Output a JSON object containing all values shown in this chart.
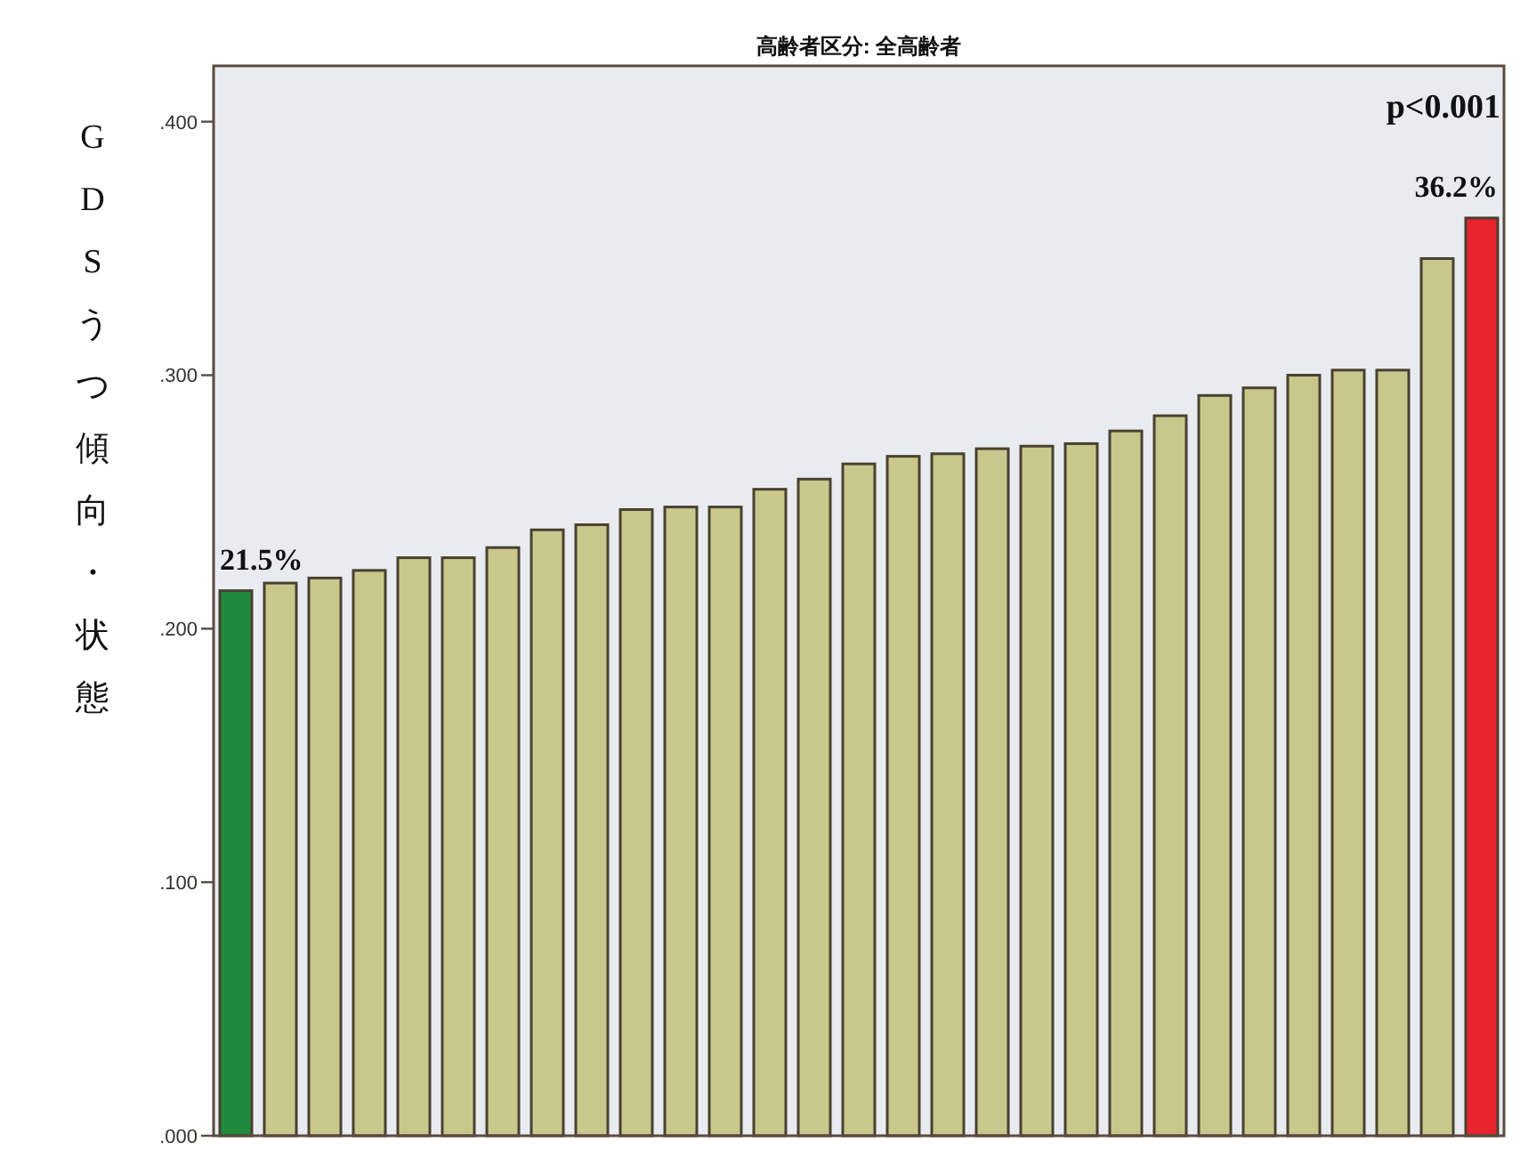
{
  "chart_data": {
    "type": "bar",
    "title": "高齢者区分: 全高齢者",
    "ylabel": "GDSうつ傾向・状態",
    "categories": [
      null,
      null,
      null,
      null,
      null,
      null,
      null,
      null,
      null,
      null,
      null,
      null,
      null,
      null,
      null,
      null,
      null,
      null,
      null,
      null,
      null,
      null,
      null,
      null,
      null,
      null,
      null,
      null,
      null
    ],
    "values": [
      0.215,
      0.218,
      0.22,
      0.223,
      0.228,
      0.228,
      0.232,
      0.239,
      0.241,
      0.247,
      0.248,
      0.248,
      0.255,
      0.259,
      0.265,
      0.268,
      0.269,
      0.271,
      0.272,
      0.273,
      0.278,
      0.284,
      0.292,
      0.295,
      0.3,
      0.302,
      0.302,
      0.346,
      0.362
    ],
    "colors": [
      "#1f8a3d",
      "#c8c88c",
      "#c8c88c",
      "#c8c88c",
      "#c8c88c",
      "#c8c88c",
      "#c8c88c",
      "#c8c88c",
      "#c8c88c",
      "#c8c88c",
      "#c8c88c",
      "#c8c88c",
      "#c8c88c",
      "#c8c88c",
      "#c8c88c",
      "#c8c88c",
      "#c8c88c",
      "#c8c88c",
      "#c8c88c",
      "#c8c88c",
      "#c8c88c",
      "#c8c88c",
      "#c8c88c",
      "#c8c88c",
      "#c8c88c",
      "#c8c88c",
      "#c8c88c",
      "#c8c88c",
      "#e8242c"
    ],
    "value_labels": [
      "21.5%",
      null,
      null,
      null,
      null,
      null,
      null,
      null,
      null,
      null,
      null,
      null,
      null,
      null,
      null,
      null,
      null,
      null,
      null,
      null,
      null,
      null,
      null,
      null,
      null,
      null,
      null,
      null,
      "36.2%"
    ],
    "annotations": [
      "p<0.001"
    ],
    "ylim": [
      0,
      0.422
    ],
    "yticks": [
      {
        "value": 0,
        "label": ".000"
      },
      {
        "value": 0.1,
        "label": ".100"
      },
      {
        "value": 0.2,
        "label": ".200"
      },
      {
        "value": 0.3,
        "label": ".300"
      },
      {
        "value": 0.4,
        "label": ".400"
      }
    ],
    "grid": false
  }
}
